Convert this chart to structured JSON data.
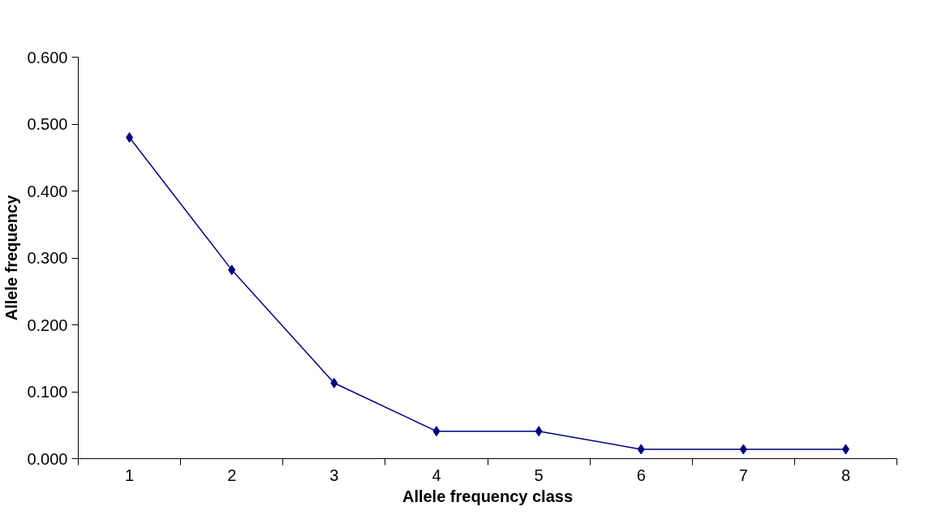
{
  "chart_data": {
    "type": "line",
    "xlabel": "Allele frequency class",
    "ylabel": "Allele frequency",
    "categories": [
      "1",
      "2",
      "3",
      "4",
      "5",
      "6",
      "7",
      "8"
    ],
    "series": [
      {
        "color": "#000080",
        "values": [
          0.48,
          0.282,
          0.113,
          0.041,
          0.041,
          0.014,
          0.014,
          0.014
        ]
      }
    ],
    "ylim": [
      0,
      0.6
    ],
    "yticks": [
      {
        "value": 0,
        "label": "0.000"
      },
      {
        "value": 0.1,
        "label": "0.100"
      },
      {
        "value": 0.2,
        "label": "0.200"
      },
      {
        "value": 0.3,
        "label": "0.300"
      },
      {
        "value": 0.4,
        "label": "0.400"
      },
      {
        "value": 0.5,
        "label": "0.500"
      },
      {
        "value": 0.6,
        "label": "0.600"
      }
    ],
    "grid": false,
    "marker": "diamond",
    "line_style": "solid"
  }
}
